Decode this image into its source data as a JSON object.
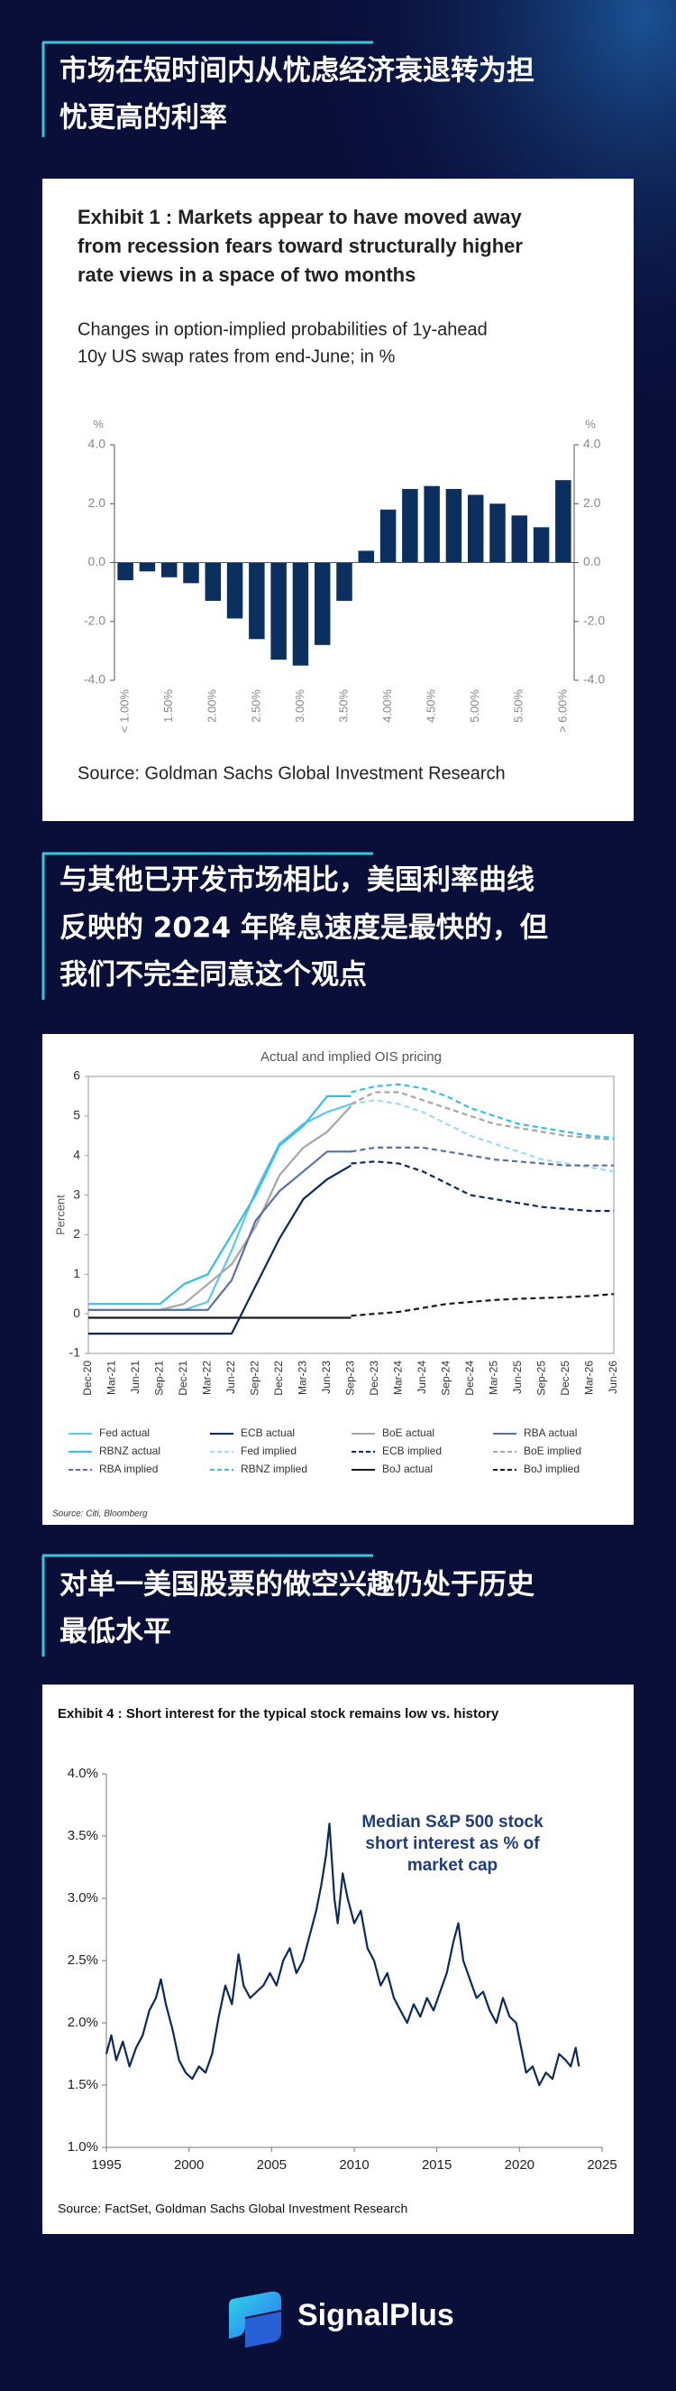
{
  "headings": [
    {
      "lines": [
        "市场在短时间内从忧虑经济衰退转为担",
        "忧更高的利率"
      ]
    },
    {
      "lines": [
        "与其他已开发市场相比，美国利率曲线",
        "反映的 2024 年降息速度是最快的，但",
        "我们不完全同意这个观点"
      ]
    },
    {
      "lines": [
        "对单一美国股票的做空兴趣仍处于历史",
        "最低水平"
      ]
    }
  ],
  "chart_data": [
    {
      "type": "bar",
      "title": [
        "Exhibit 1 : Markets appear to have moved away",
        "from recession fears toward structurally higher",
        "rate views in a space of two months"
      ],
      "subtitle": [
        "Changes in option-implied probabilities of 1y-ahead",
        "10y US swap rates from end-June; in %"
      ],
      "y_unit": "%",
      "categories": [
        "< 1.00%",
        null,
        "1.50%",
        null,
        "2.00%",
        null,
        "2.50%",
        null,
        "3.00%",
        null,
        "3.50%",
        null,
        "4.00%",
        null,
        "4.50%",
        null,
        "5.00%",
        null,
        "5.50%",
        null,
        "> 6.00%"
      ],
      "values": [
        -0.6,
        -0.3,
        -0.5,
        -0.7,
        -1.3,
        -1.9,
        -2.6,
        -3.3,
        -3.5,
        -2.8,
        -1.3,
        0.4,
        1.8,
        2.5,
        2.6,
        2.5,
        2.3,
        2.0,
        1.6,
        1.2,
        2.8
      ],
      "color": "#0b2f5e",
      "ylim": [
        -4,
        4
      ],
      "yticks": [
        {
          "value": -4,
          "label": "-4.0"
        },
        {
          "value": -2,
          "label": "-2.0"
        },
        {
          "value": 0,
          "label": "0.0"
        },
        {
          "value": 2,
          "label": "2.0"
        },
        {
          "value": 4,
          "label": "4.0"
        }
      ],
      "source": "Source: Goldman Sachs Global Investment Research"
    },
    {
      "type": "line",
      "title": "Actual and implied OIS pricing",
      "y_label": "Percent",
      "categories": [
        "Dec-20",
        "Mar-21",
        "Jun-21",
        "Sep-21",
        "Dec-21",
        "Mar-22",
        "Jun-22",
        "Sep-22",
        "Dec-22",
        "Mar-23",
        "Jun-23",
        "Sep-23",
        "Dec-23",
        "Mar-24",
        "Jun-24",
        "Sep-24",
        "Dec-24",
        "Mar-25",
        "Jun-25",
        "Sep-25",
        "Dec-25",
        "Mar-26",
        "Jun-26"
      ],
      "ylim": [
        -1,
        6
      ],
      "yticks": [
        -1,
        0,
        1,
        2,
        3,
        4,
        5,
        6
      ],
      "series": [
        {
          "name": "Fed actual",
          "color": "#5cc8ec",
          "dashed": false,
          "values": [
            0.1,
            0.1,
            0.1,
            0.1,
            0.1,
            0.3,
            1.6,
            3.1,
            4.3,
            4.8,
            5.1,
            5.3,
            null,
            null,
            null,
            null,
            null,
            null,
            null,
            null,
            null,
            null,
            null
          ]
        },
        {
          "name": "ECB actual",
          "color": "#0b2a5b",
          "dashed": false,
          "values": [
            -0.5,
            -0.5,
            -0.5,
            -0.5,
            -0.5,
            -0.5,
            -0.5,
            0.7,
            1.9,
            2.9,
            3.4,
            3.75,
            null,
            null,
            null,
            null,
            null,
            null,
            null,
            null,
            null,
            null,
            null
          ]
        },
        {
          "name": "BoE actual",
          "color": "#a6a6a6",
          "dashed": false,
          "values": [
            0.1,
            0.1,
            0.1,
            0.1,
            0.25,
            0.75,
            1.25,
            2.2,
            3.5,
            4.2,
            4.6,
            5.25,
            null,
            null,
            null,
            null,
            null,
            null,
            null,
            null,
            null,
            null,
            null
          ]
        },
        {
          "name": "RBA actual",
          "color": "#5a6fa8",
          "dashed": false,
          "values": [
            0.1,
            0.1,
            0.1,
            0.1,
            0.1,
            0.1,
            0.85,
            2.35,
            3.1,
            3.6,
            4.1,
            4.1,
            null,
            null,
            null,
            null,
            null,
            null,
            null,
            null,
            null,
            null,
            null
          ]
        },
        {
          "name": "RBNZ actual",
          "color": "#36bfe0",
          "dashed": false,
          "values": [
            0.25,
            0.25,
            0.25,
            0.25,
            0.75,
            1.0,
            2.0,
            3.0,
            4.25,
            4.75,
            5.5,
            5.5,
            null,
            null,
            null,
            null,
            null,
            null,
            null,
            null,
            null,
            null,
            null
          ]
        },
        {
          "name": "Fed implied",
          "color": "#9fdcf2",
          "dashed": true,
          "values": [
            null,
            null,
            null,
            null,
            null,
            null,
            null,
            null,
            null,
            null,
            null,
            5.3,
            5.4,
            5.3,
            5.1,
            4.8,
            4.5,
            4.3,
            4.1,
            3.9,
            3.8,
            3.7,
            3.6
          ]
        },
        {
          "name": "ECB implied",
          "color": "#0b2a5b",
          "dashed": true,
          "values": [
            null,
            null,
            null,
            null,
            null,
            null,
            null,
            null,
            null,
            null,
            null,
            3.8,
            3.85,
            3.8,
            3.6,
            3.3,
            3.0,
            2.9,
            2.8,
            2.7,
            2.65,
            2.6,
            2.6
          ]
        },
        {
          "name": "BoE implied",
          "color": "#a6a6a6",
          "dashed": true,
          "values": [
            null,
            null,
            null,
            null,
            null,
            null,
            null,
            null,
            null,
            null,
            null,
            5.3,
            5.6,
            5.6,
            5.4,
            5.2,
            5.0,
            4.8,
            4.7,
            4.6,
            4.5,
            4.45,
            4.4
          ]
        },
        {
          "name": "RBA implied",
          "color": "#5a6fa8",
          "dashed": true,
          "values": [
            null,
            null,
            null,
            null,
            null,
            null,
            null,
            null,
            null,
            null,
            null,
            4.1,
            4.2,
            4.2,
            4.2,
            4.1,
            4.0,
            3.9,
            3.85,
            3.8,
            3.75,
            3.75,
            3.75
          ]
        },
        {
          "name": "RBNZ implied",
          "color": "#36bfe0",
          "dashed": true,
          "values": [
            null,
            null,
            null,
            null,
            null,
            null,
            null,
            null,
            null,
            null,
            null,
            5.6,
            5.75,
            5.8,
            5.7,
            5.5,
            5.2,
            5.0,
            4.8,
            4.7,
            4.6,
            4.5,
            4.45
          ]
        },
        {
          "name": "BoJ actual",
          "color": "#1a1a1a",
          "dashed": false,
          "values": [
            -0.1,
            -0.1,
            -0.1,
            -0.1,
            -0.1,
            -0.1,
            -0.1,
            -0.1,
            -0.1,
            -0.1,
            -0.1,
            -0.1,
            null,
            null,
            null,
            null,
            null,
            null,
            null,
            null,
            null,
            null,
            null
          ]
        },
        {
          "name": "BoJ implied",
          "color": "#1a1a1a",
          "dashed": true,
          "values": [
            null,
            null,
            null,
            null,
            null,
            null,
            null,
            null,
            null,
            null,
            null,
            -0.05,
            0,
            0.05,
            0.15,
            0.25,
            0.3,
            0.35,
            0.38,
            0.4,
            0.42,
            0.45,
            0.5
          ]
        }
      ],
      "source": "Source: Citi, Bloomberg"
    },
    {
      "type": "line",
      "title": "Exhibit 4 : Short interest for the typical stock remains low vs. history",
      "annotation": [
        "Median  S&P 500 stock",
        "short interest  as % of",
        "market cap"
      ],
      "x": [
        1995.0,
        1995.3,
        1995.6,
        1996.0,
        1996.4,
        1996.8,
        1997.2,
        1997.6,
        1998.0,
        1998.3,
        1998.6,
        1999.0,
        1999.4,
        1999.8,
        2000.2,
        2000.6,
        2001.0,
        2001.4,
        2001.8,
        2002.2,
        2002.6,
        2003.0,
        2003.3,
        2003.7,
        2004.1,
        2004.5,
        2004.9,
        2005.3,
        2005.7,
        2006.1,
        2006.5,
        2006.9,
        2007.3,
        2007.7,
        2008.0,
        2008.3,
        2008.5,
        2008.8,
        2009.0,
        2009.3,
        2009.6,
        2010.0,
        2010.4,
        2010.8,
        2011.2,
        2011.6,
        2012.0,
        2012.4,
        2012.8,
        2013.2,
        2013.6,
        2014.0,
        2014.4,
        2014.8,
        2015.2,
        2015.6,
        2016.0,
        2016.3,
        2016.6,
        2017.0,
        2017.4,
        2017.8,
        2018.2,
        2018.6,
        2019.0,
        2019.4,
        2019.8,
        2020.1,
        2020.4,
        2020.8,
        2021.2,
        2021.6,
        2022.0,
        2022.4,
        2022.8,
        2023.1,
        2023.4,
        2023.6
      ],
      "series": [
        {
          "name": null,
          "color": "#0b2a5b",
          "dashed": false,
          "values": [
            1.75,
            1.9,
            1.7,
            1.85,
            1.65,
            1.8,
            1.9,
            2.1,
            2.2,
            2.35,
            2.15,
            1.95,
            1.7,
            1.6,
            1.55,
            1.65,
            1.6,
            1.75,
            2.05,
            2.3,
            2.15,
            2.55,
            2.3,
            2.2,
            2.25,
            2.3,
            2.4,
            2.3,
            2.5,
            2.6,
            2.4,
            2.5,
            2.7,
            2.9,
            3.1,
            3.35,
            3.6,
            3.0,
            2.8,
            3.2,
            3.0,
            2.8,
            2.9,
            2.6,
            2.5,
            2.3,
            2.4,
            2.2,
            2.1,
            2.0,
            2.15,
            2.05,
            2.2,
            2.1,
            2.25,
            2.4,
            2.65,
            2.8,
            2.5,
            2.35,
            2.2,
            2.25,
            2.1,
            2.0,
            2.2,
            2.05,
            2.0,
            1.8,
            1.6,
            1.65,
            1.5,
            1.6,
            1.55,
            1.75,
            1.7,
            1.65,
            1.8,
            1.65
          ]
        }
      ],
      "xlim": [
        1995,
        2025
      ],
      "xticks": [
        1995,
        2000,
        2005,
        2010,
        2015,
        2020,
        2025
      ],
      "ylim": [
        1.0,
        4.0
      ],
      "yticks": [
        {
          "value": 1.0,
          "label": "1.0%"
        },
        {
          "value": 1.5,
          "label": "1.5%"
        },
        {
          "value": 2.0,
          "label": "2.0%"
        },
        {
          "value": 2.5,
          "label": "2.5%"
        },
        {
          "value": 3.0,
          "label": "3.0%"
        },
        {
          "value": 3.5,
          "label": "3.5%"
        },
        {
          "value": 4.0,
          "label": "4.0%"
        }
      ],
      "source": "Source: FactSet, Goldman Sachs Global Investment Research"
    }
  ],
  "footer": {
    "brand": "SignalPlus"
  }
}
